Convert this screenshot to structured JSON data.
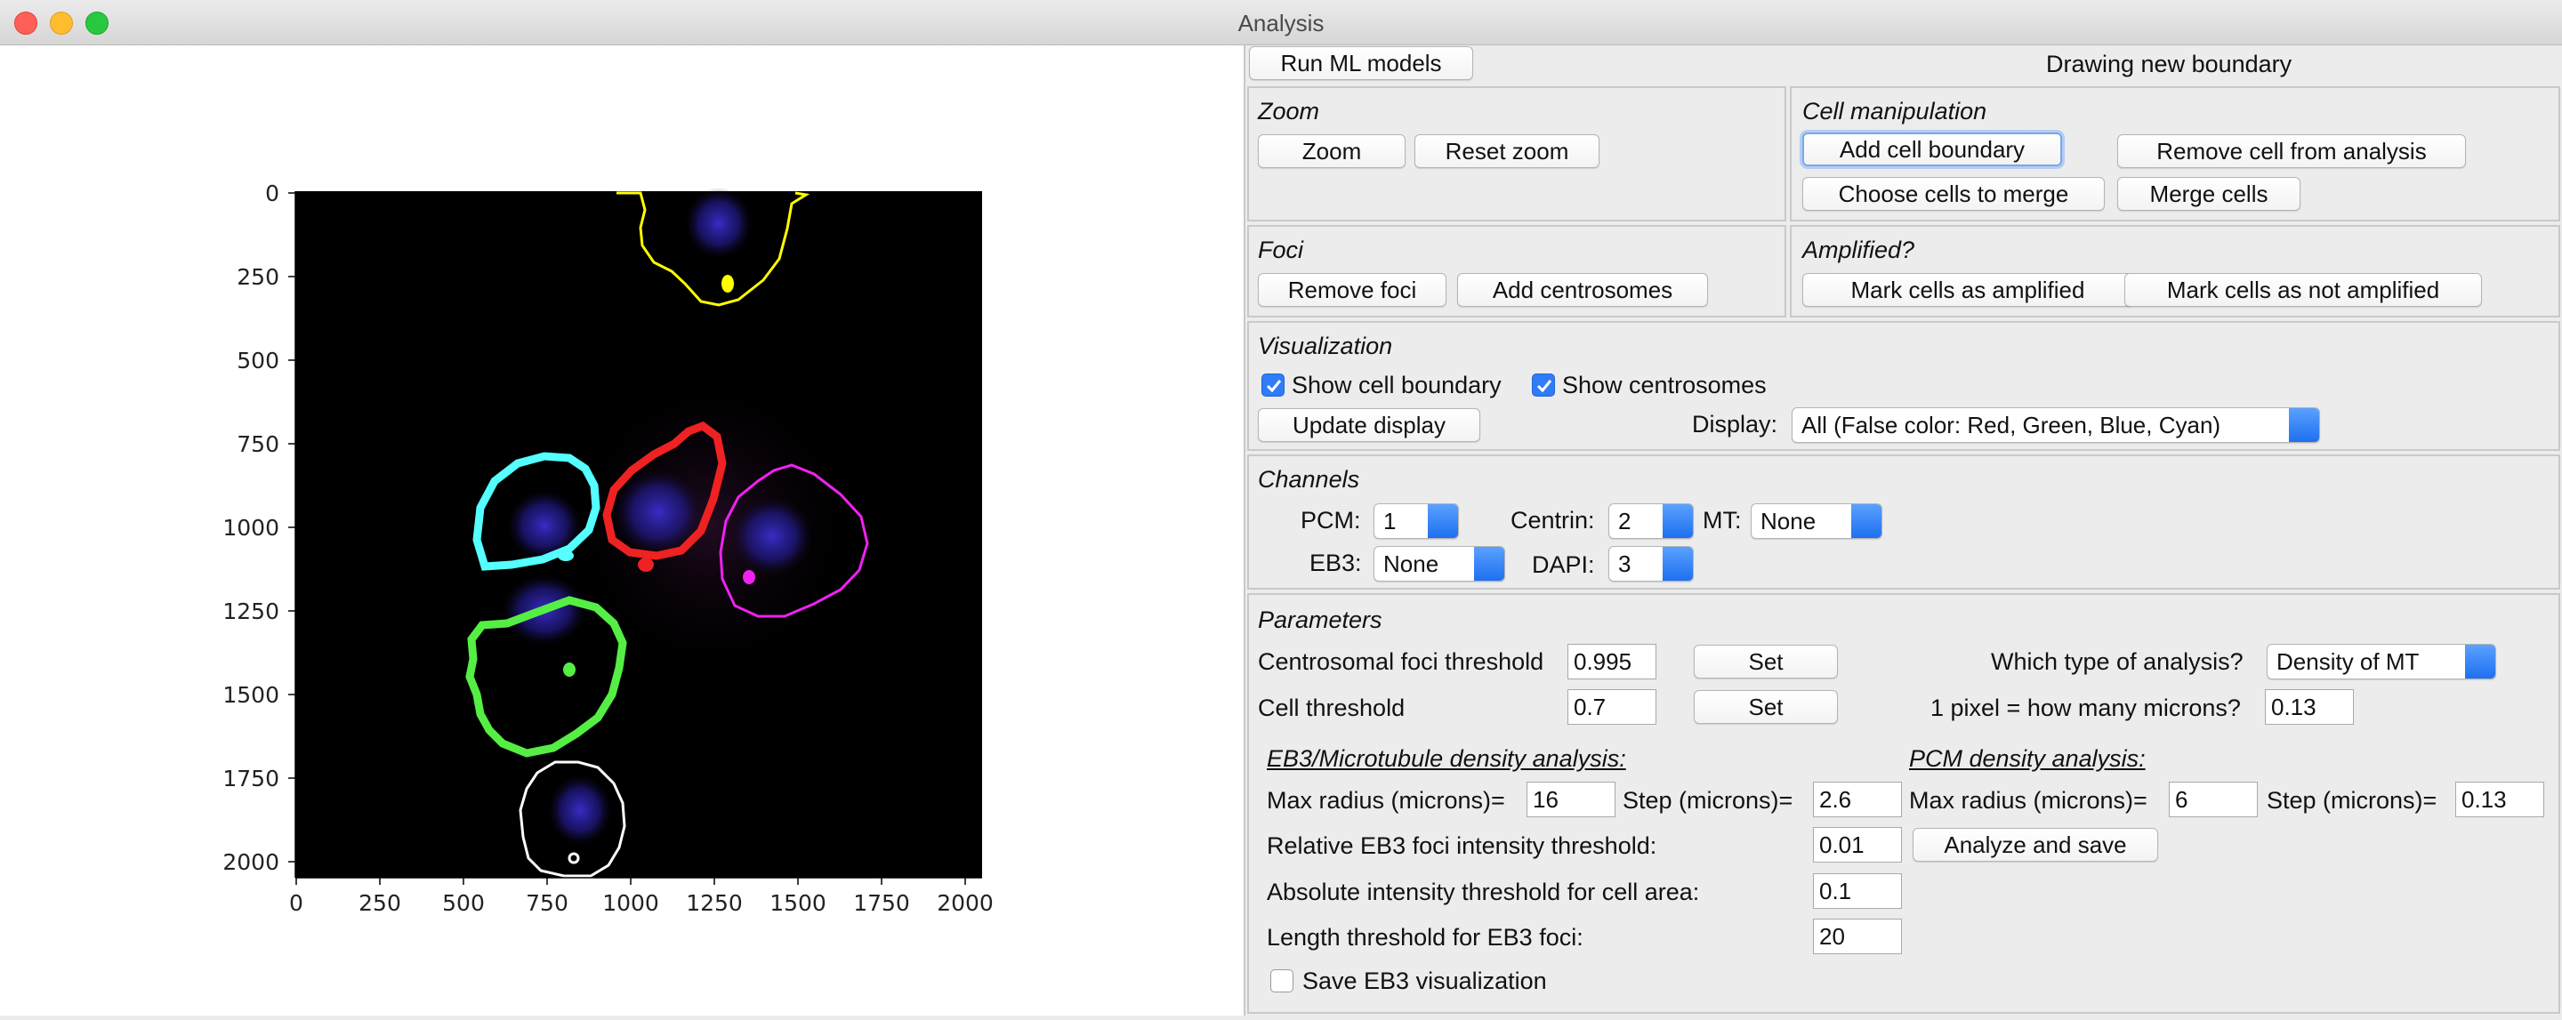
{
  "window": {
    "title": "Analysis"
  },
  "plot": {
    "y_ticks": [
      "0",
      "250",
      "500",
      "750",
      "1000",
      "1250",
      "1500",
      "1750",
      "2000"
    ],
    "x_ticks": [
      "0",
      "250",
      "500",
      "750",
      "1000",
      "1250",
      "1500",
      "1750",
      "2000"
    ],
    "boundary_colors": {
      "yellow": "#ffff00",
      "cyan": "#55ffff",
      "red": "#ee2222",
      "magenta": "#ee22ee",
      "green": "#55ee44",
      "white": "#ffffff"
    }
  },
  "top": {
    "run_ml": "Run ML models",
    "status": "Drawing new boundary"
  },
  "zoom": {
    "title": "Zoom",
    "zoom": "Zoom",
    "reset": "Reset zoom"
  },
  "cell_manip": {
    "title": "Cell manipulation",
    "add": "Add cell boundary",
    "remove": "Remove cell from analysis",
    "choose": "Choose cells to merge",
    "merge": "Merge cells"
  },
  "foci": {
    "title": "Foci",
    "remove": "Remove foci",
    "add": "Add centrosomes"
  },
  "amplified": {
    "title": "Amplified?",
    "mark": "Mark cells as amplified",
    "mark_not": "Mark cells as not amplified"
  },
  "visualization": {
    "title": "Visualization",
    "show_boundary": "Show cell boundary",
    "show_centrosomes": "Show centrosomes",
    "update": "Update display",
    "display_label": "Display:",
    "display_value": "All (False color: Red, Green, Blue, Cyan)"
  },
  "channels": {
    "title": "Channels",
    "pcm_label": "PCM:",
    "pcm": "1",
    "centrin_label": "Centrin:",
    "centrin": "2",
    "mt_label": "MT:",
    "mt": "None",
    "eb3_label": "EB3:",
    "eb3": "None",
    "dapi_label": "DAPI:",
    "dapi": "3"
  },
  "parameters": {
    "title": "Parameters",
    "foci_thr_label": "Centrosomal foci threshold",
    "foci_thr": "0.995",
    "cell_thr_label": "Cell threshold",
    "cell_thr": "0.7",
    "set": "Set",
    "analysis_type_label": "Which type of analysis?",
    "analysis_type": "Density of MT",
    "pixel_label": "1 pixel = how many microns?",
    "pixel": "0.13",
    "eb3_heading": "EB3/Microtubule density analysis:",
    "eb3_max_label": "Max radius (microns)=",
    "eb3_max": "16",
    "eb3_step_label": "Step (microns)=",
    "eb3_step": "2.6",
    "rel_label": "Relative EB3 foci intensity threshold:",
    "rel": "0.01",
    "abs_label": "Absolute intensity threshold for cell area:",
    "abs": "0.1",
    "len_label": "Length threshold for EB3 foci:",
    "len": "20",
    "save_eb3": "Save EB3 visualization",
    "pcm_heading": "PCM density analysis:",
    "pcm_max_label": "Max radius (microns)=",
    "pcm_max": "6",
    "pcm_step_label": "Step (microns)=",
    "pcm_step": "0.13",
    "analyze": "Analyze and save"
  }
}
